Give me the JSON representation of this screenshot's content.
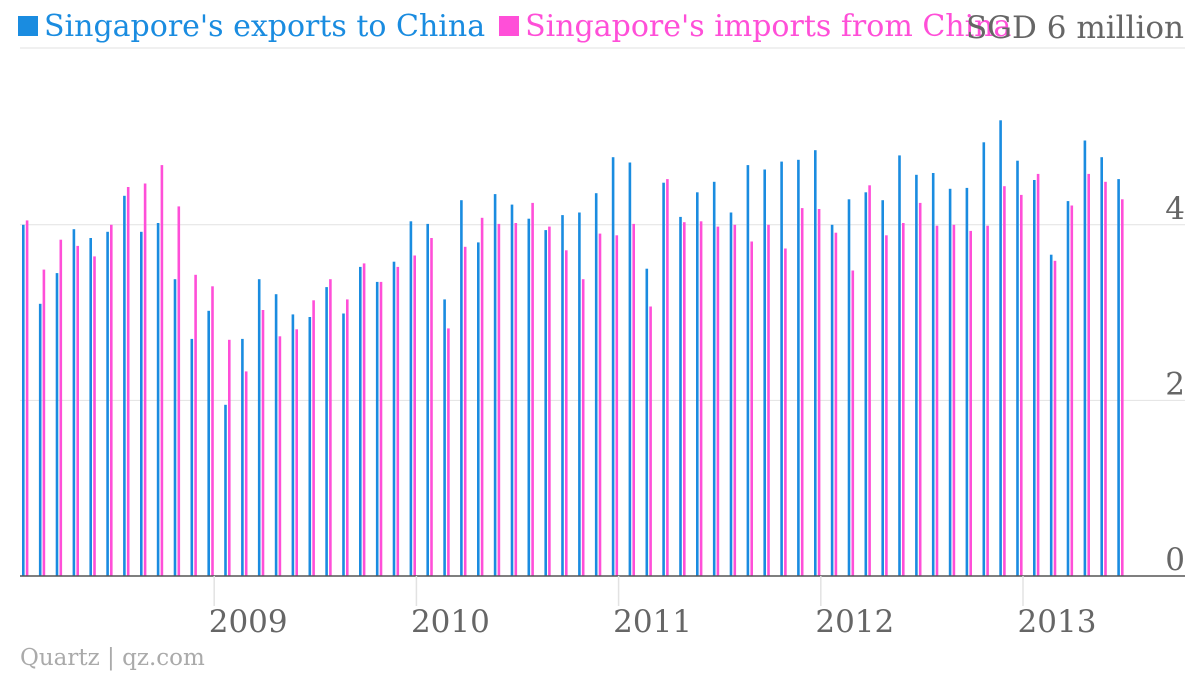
{
  "colors": {
    "exports": "#1a8ce0",
    "imports": "#ff4fd8",
    "grid": "#e2e2e2",
    "axis": "#555555",
    "tick_text": "#666666"
  },
  "source": "Quartz | qz.com",
  "chart_data": {
    "type": "bar",
    "unit_label": "SGD 6 million",
    "ylim": [
      0,
      6
    ],
    "yticks": [
      0,
      2,
      4
    ],
    "grid": true,
    "legend_position": "top-left",
    "x_start": "2008-01",
    "x_end": "2013-06",
    "xticks": [
      "2009",
      "2010",
      "2011",
      "2012",
      "2013"
    ],
    "categories": [
      "2008-01",
      "2008-02",
      "2008-03",
      "2008-04",
      "2008-05",
      "2008-06",
      "2008-07",
      "2008-08",
      "2008-09",
      "2008-10",
      "2008-11",
      "2008-12",
      "2009-01",
      "2009-02",
      "2009-03",
      "2009-04",
      "2009-05",
      "2009-06",
      "2009-07",
      "2009-08",
      "2009-09",
      "2009-10",
      "2009-11",
      "2009-12",
      "2010-01",
      "2010-02",
      "2010-03",
      "2010-04",
      "2010-05",
      "2010-06",
      "2010-07",
      "2010-08",
      "2010-09",
      "2010-10",
      "2010-11",
      "2010-12",
      "2011-01",
      "2011-02",
      "2011-03",
      "2011-04",
      "2011-05",
      "2011-06",
      "2011-07",
      "2011-08",
      "2011-09",
      "2011-10",
      "2011-11",
      "2011-12",
      "2012-01",
      "2012-02",
      "2012-03",
      "2012-04",
      "2012-05",
      "2012-06",
      "2012-07",
      "2012-08",
      "2012-09",
      "2012-10",
      "2012-11",
      "2012-12",
      "2013-01",
      "2013-02",
      "2013-03",
      "2013-04",
      "2013-05",
      "2013-06"
    ],
    "series": [
      {
        "name": "Singapore's exports to China",
        "values": [
          4.0,
          3.1,
          3.45,
          3.95,
          3.85,
          3.92,
          4.33,
          3.92,
          4.02,
          3.38,
          2.7,
          3.02,
          1.95,
          2.7,
          3.38,
          3.21,
          2.98,
          2.95,
          3.29,
          2.99,
          3.52,
          3.35,
          3.58,
          4.04,
          4.01,
          3.15,
          4.28,
          3.8,
          4.35,
          4.23,
          4.07,
          3.94,
          4.11,
          4.14,
          4.36,
          4.77,
          4.71,
          3.5,
          4.48,
          4.09,
          4.37,
          4.49,
          4.14,
          4.68,
          4.63,
          4.72,
          4.74,
          4.85,
          4.0,
          4.29,
          4.37,
          4.28,
          4.79,
          4.57,
          4.59,
          4.41,
          4.42,
          4.94,
          5.19,
          4.73,
          4.51,
          3.66,
          4.27,
          4.96,
          4.77,
          4.52
        ]
      },
      {
        "name": "Singapore's imports from China",
        "values": [
          4.05,
          3.49,
          3.83,
          3.76,
          3.64,
          4.0,
          4.43,
          4.47,
          4.68,
          4.21,
          3.43,
          3.3,
          2.69,
          2.33,
          3.03,
          2.73,
          2.81,
          3.14,
          3.38,
          3.15,
          3.56,
          3.35,
          3.52,
          3.65,
          3.85,
          2.82,
          3.75,
          4.08,
          4.01,
          4.02,
          4.25,
          3.98,
          3.71,
          3.38,
          3.9,
          3.88,
          4.01,
          3.07,
          4.52,
          4.03,
          4.04,
          3.98,
          4.0,
          3.81,
          4.0,
          3.73,
          4.19,
          4.18,
          3.91,
          3.48,
          4.45,
          3.88,
          4.02,
          4.25,
          3.99,
          4.0,
          3.93,
          3.99,
          4.44,
          4.34,
          4.58,
          3.59,
          4.22,
          4.58,
          4.49,
          4.29
        ]
      }
    ]
  }
}
